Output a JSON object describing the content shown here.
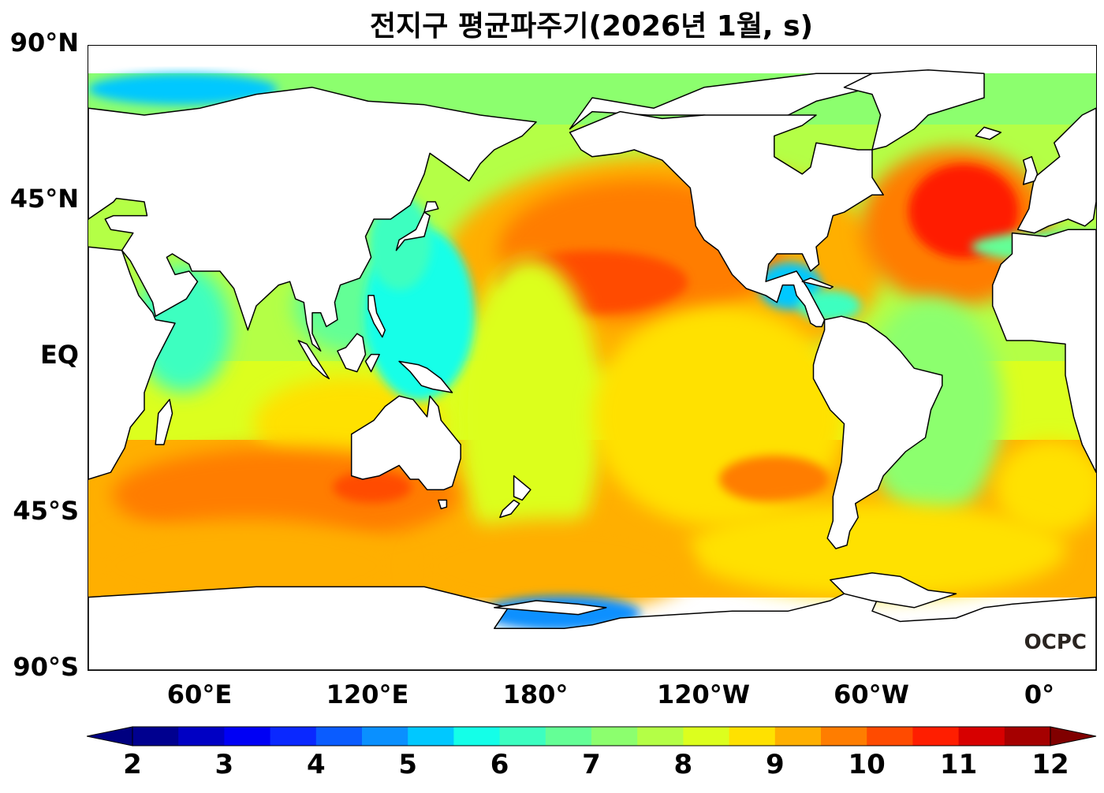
{
  "title": "전지구 평균파주기(2026년 1월, s)",
  "logo": "OCPC",
  "map": {
    "type": "global wave period map",
    "projection": "plate carree",
    "lon_range": [
      20,
      380
    ],
    "lat_range": [
      -90,
      90
    ],
    "lat_ticks": [
      {
        "lat": 90,
        "label": "90°N"
      },
      {
        "lat": 45,
        "label": "45°N"
      },
      {
        "lat": 0,
        "label": "EQ"
      },
      {
        "lat": -45,
        "label": "45°S"
      },
      {
        "lat": -90,
        "label": "90°S"
      }
    ],
    "lon_ticks": [
      {
        "lon": 60,
        "label": "60°E"
      },
      {
        "lon": 120,
        "label": "120°E"
      },
      {
        "lon": 180,
        "label": "180°"
      },
      {
        "lon": 240,
        "label": "120°W"
      },
      {
        "lon": 300,
        "label": "60°W"
      },
      {
        "lon": 360,
        "label": "0°"
      }
    ]
  },
  "colorbar": {
    "min": 2,
    "max": 12,
    "step": 0.5,
    "ticks": [
      "2",
      "3",
      "4",
      "5",
      "6",
      "7",
      "8",
      "9",
      "10",
      "11",
      "12"
    ],
    "extend": "both",
    "colors": [
      "#00008f",
      "#0000c4",
      "#0000f5",
      "#0a28ff",
      "#0a5cff",
      "#0a90ff",
      "#00c8ff",
      "#14ffe8",
      "#3cffc0",
      "#64ff96",
      "#8cff6e",
      "#b4ff46",
      "#dcff1e",
      "#ffe100",
      "#ffaf00",
      "#ff7d00",
      "#ff4b00",
      "#ff1e00",
      "#d70000",
      "#a50000"
    ],
    "under_color": "#000080",
    "over_color": "#800000"
  }
}
